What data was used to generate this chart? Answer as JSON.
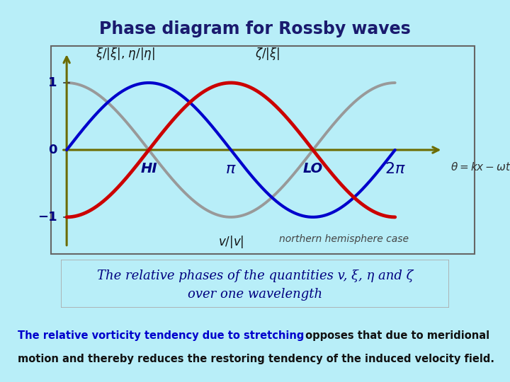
{
  "background_color": "#b8eef8",
  "plot_bg_color": "#ffffff",
  "title_text": "Phase diagram for Rossby waves",
  "title_bg": "#ffff00",
  "title_color": "#1a1a6e",
  "title_fontsize": 17,
  "x_min": -0.3,
  "x_max": 7.8,
  "y_min": -1.55,
  "y_max": 1.55,
  "axis_color": "#6b6b00",
  "v_color": "#999999",
  "xi_color": "#0000cc",
  "zeta_color": "#cc0000",
  "tick_color": "#000080",
  "label_color": "#000080",
  "bottom_box_bg": "#ffffd0",
  "bottom_box_border": "#aaaaaa",
  "bottom_box_color": "#000080",
  "bottom_box_text1": "The relative phases of the quantities v, ξ, η and ζ",
  "bottom_box_text2": "over one wavelength",
  "bottom_bg": "#ffffa0",
  "bottom_line1_blue": "The relative vorticity tendency due to stretching",
  "bottom_line1_black": " opposes that due to meridional",
  "bottom_line2": "motion and thereby reduces the restoring tendency of the induced velocity field.",
  "northern_text": "northern hemisphere case"
}
